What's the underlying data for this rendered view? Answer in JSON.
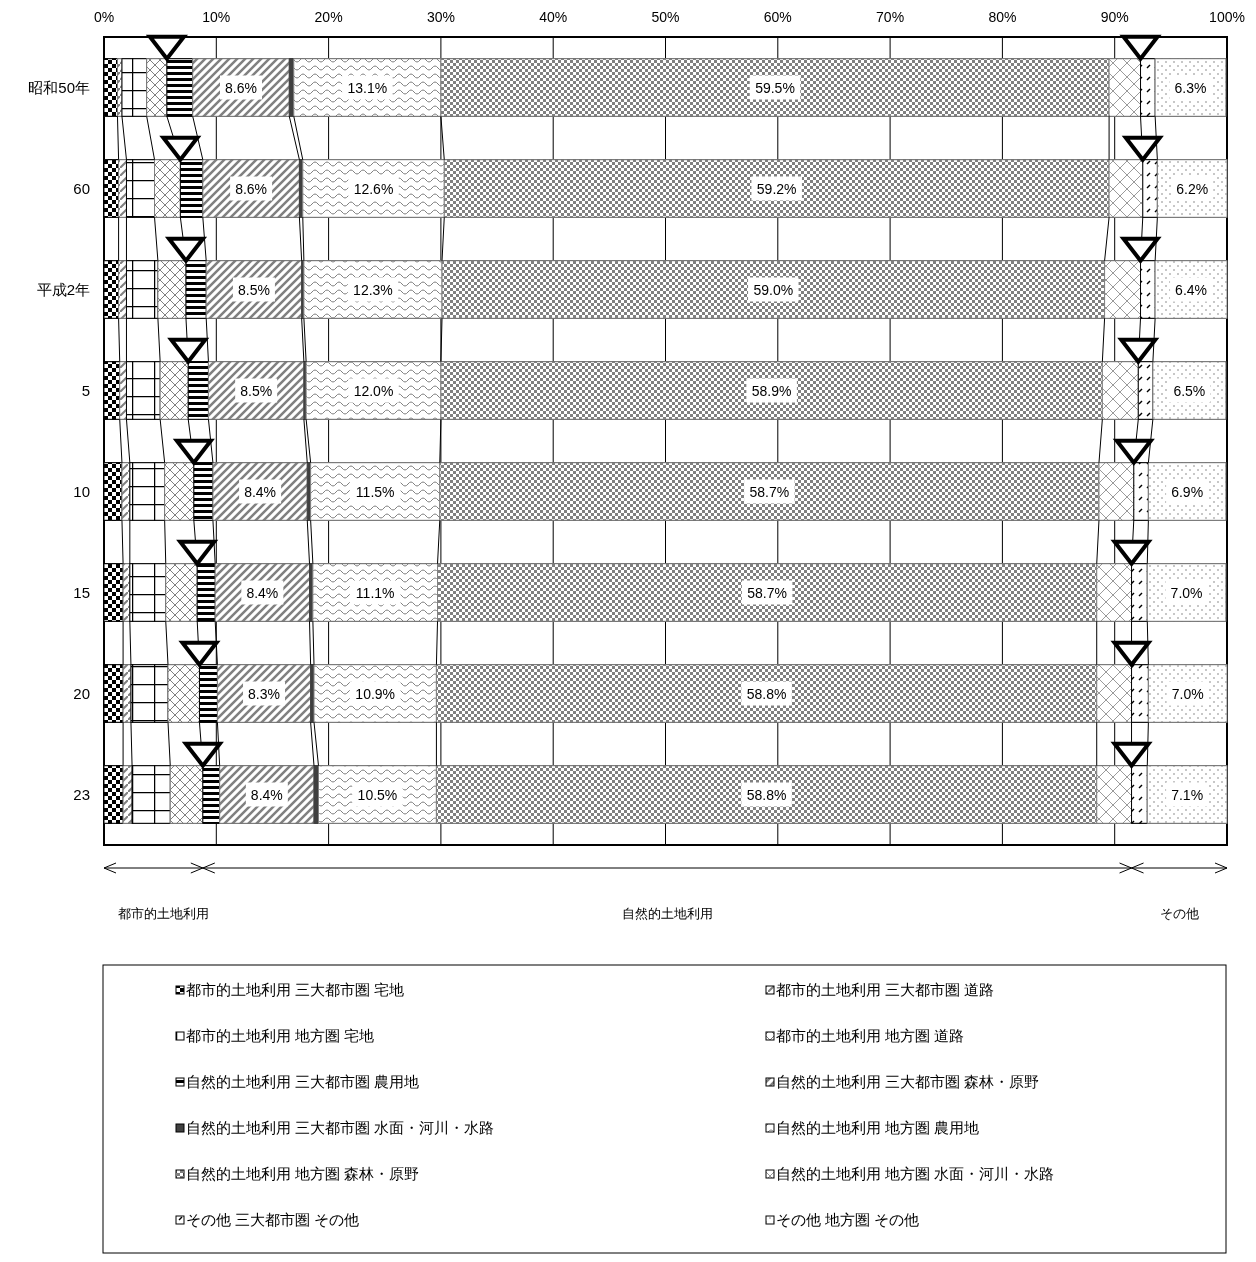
{
  "chart_data": {
    "type": "bar",
    "orientation": "horizontal",
    "stacked": true,
    "categories": [
      "昭和50年",
      "60",
      "平成2年",
      "5",
      "10",
      "15",
      "20",
      "23"
    ],
    "xlim": [
      0,
      100
    ],
    "xticks": [
      {
        "value": 0,
        "label": "0%"
      },
      {
        "value": 10,
        "label": "10%"
      },
      {
        "value": 20,
        "label": "20%"
      },
      {
        "value": 30,
        "label": "30%"
      },
      {
        "value": 40,
        "label": "40%"
      },
      {
        "value": 50,
        "label": "50%"
      },
      {
        "value": 60,
        "label": "60%"
      },
      {
        "value": 70,
        "label": "70%"
      },
      {
        "value": 80,
        "label": "80%"
      },
      {
        "value": 90,
        "label": "90%"
      },
      {
        "value": 100,
        "label": "100%"
      }
    ],
    "grid": true,
    "legend": "bottom",
    "annotations": [
      "都市的土地利用",
      "自然的土地利用",
      "その他"
    ],
    "series": [
      {
        "name": "都市的土地利用 三大都市圏 宅地",
        "color": "#000000",
        "values": [
          1.2,
          1.3,
          1.3,
          1.4,
          1.6,
          1.7,
          1.7,
          1.7
        ]
      },
      {
        "name": "都市的土地利用 三大都市圏 道路",
        "color": "#808080",
        "values": [
          0.4,
          0.7,
          0.7,
          0.6,
          0.7,
          0.6,
          0.7,
          0.8
        ]
      },
      {
        "name": "都市的土地利用 地方圏 宅地",
        "color": "#000000",
        "values": [
          2.2,
          2.5,
          2.8,
          3.0,
          3.1,
          3.2,
          3.3,
          3.4
        ]
      },
      {
        "name": "都市的土地利用 地方圏 道路",
        "color": "#808080",
        "values": [
          1.8,
          2.3,
          2.5,
          2.5,
          2.6,
          2.8,
          2.8,
          2.9
        ]
      },
      {
        "name": "自然的土地利用 三大都市圏 農用地",
        "color": "#000000",
        "values": [
          2.3,
          2.0,
          1.8,
          1.8,
          1.7,
          1.6,
          1.6,
          1.5
        ]
      },
      {
        "name": "自然的土地利用 三大都市圏 森林・原野",
        "color": "#808080",
        "values": [
          8.6,
          8.6,
          8.5,
          8.5,
          8.4,
          8.4,
          8.3,
          8.4
        ],
        "value_labels": [
          "8.6%",
          "8.6%",
          "8.5%",
          "8.5%",
          "8.4%",
          "8.4%",
          "8.3%",
          "8.4%"
        ]
      },
      {
        "name": "自然的土地利用 三大都市圏 水面・河川・水路",
        "color": "#404040",
        "values": [
          0.4,
          0.3,
          0.2,
          0.2,
          0.3,
          0.3,
          0.3,
          0.4
        ]
      },
      {
        "name": "自然的土地利用 地方圏 農用地",
        "color": "#808080",
        "values": [
          13.1,
          12.6,
          12.3,
          12.0,
          11.5,
          11.1,
          10.9,
          10.5
        ],
        "value_labels": [
          "13.1%",
          "12.6%",
          "12.3%",
          "12.0%",
          "11.5%",
          "11.1%",
          "10.9%",
          "10.5%"
        ]
      },
      {
        "name": "自然的土地利用 地方圏 森林・原野",
        "color": "#808080",
        "values": [
          59.5,
          59.2,
          59.0,
          58.9,
          58.7,
          58.7,
          58.8,
          58.8
        ],
        "value_labels": [
          "59.5%",
          "59.2%",
          "59.0%",
          "58.9%",
          "58.7%",
          "58.7%",
          "58.8%",
          "58.8%"
        ]
      },
      {
        "name": "自然的土地利用 地方圏 水面・河川・水路",
        "color": "#808080",
        "values": [
          2.8,
          3.0,
          3.2,
          3.2,
          3.1,
          3.1,
          3.1,
          3.1
        ]
      },
      {
        "name": "その他 三大都市圏 その他",
        "color": "#000000",
        "values": [
          1.3,
          1.3,
          1.3,
          1.3,
          1.3,
          1.4,
          1.5,
          1.4
        ]
      },
      {
        "name": "その他 地方圏 その他",
        "color": "#808080",
        "values": [
          6.3,
          6.2,
          6.4,
          6.5,
          6.9,
          7.0,
          7.0,
          7.1
        ],
        "value_labels": [
          "6.3%",
          "6.2%",
          "6.4%",
          "6.5%",
          "6.9%",
          "7.0%",
          "7.0%",
          "7.1%"
        ]
      }
    ]
  }
}
